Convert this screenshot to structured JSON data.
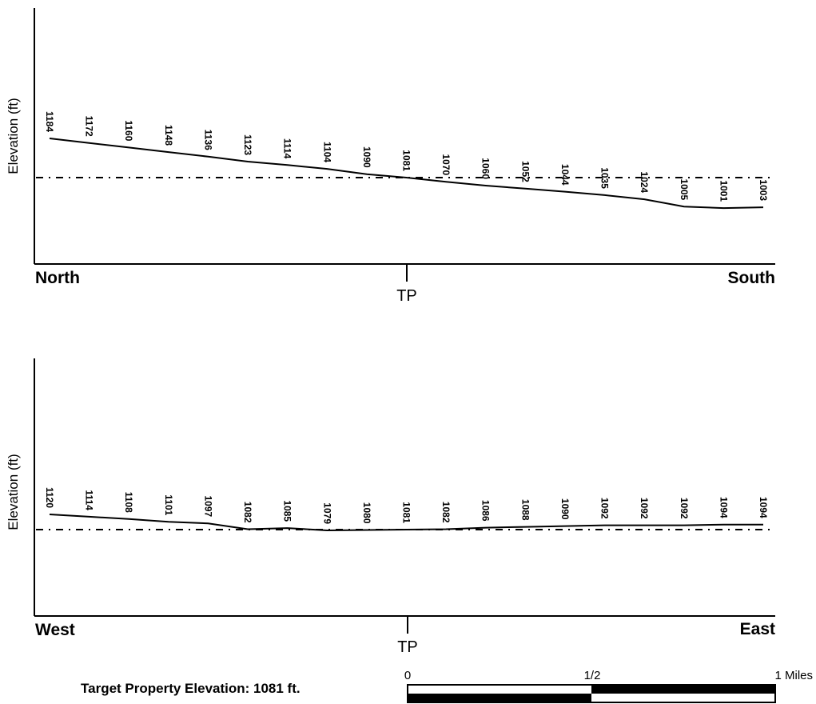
{
  "chart_data": [
    {
      "type": "line",
      "ylabel": "Elevation (ft)",
      "x_start_label": "North",
      "x_end_label": "South",
      "marker_label": "TP",
      "reference_elevation": 1081,
      "labels": [
        "1184",
        "1172",
        "1160",
        "1148",
        "1136",
        "1123",
        "1114",
        "1104",
        "1090",
        "1081",
        "1070",
        "1060",
        "1052",
        "1044",
        "1035",
        "1024",
        "1005",
        "1001",
        "1003"
      ],
      "values": [
        1184,
        1172,
        1160,
        1148,
        1136,
        1123,
        1114,
        1104,
        1090,
        1081,
        1070,
        1060,
        1052,
        1044,
        1035,
        1024,
        1005,
        1001,
        1003
      ]
    },
    {
      "type": "line",
      "ylabel": "Elevation (ft)",
      "x_start_label": "West",
      "x_end_label": "East",
      "marker_label": "TP",
      "reference_elevation": 1081,
      "labels": [
        "1120",
        "1114",
        "1108",
        "1101",
        "1097",
        "1082",
        "1085",
        "1079",
        "1080",
        "1081",
        "1082",
        "1086",
        "1088",
        "1090",
        "1092",
        "1092",
        "1092",
        "1094",
        "1094"
      ],
      "values": [
        1120,
        1114,
        1108,
        1101,
        1097,
        1082,
        1085,
        1079,
        1080,
        1081,
        1082,
        1086,
        1088,
        1090,
        1092,
        1092,
        1092,
        1094,
        1094
      ]
    }
  ],
  "footer": {
    "target_elevation_text": "Target Property Elevation: 1081 ft."
  },
  "scale_bar": {
    "labels": [
      "0",
      "1/2",
      "1 Miles"
    ]
  }
}
